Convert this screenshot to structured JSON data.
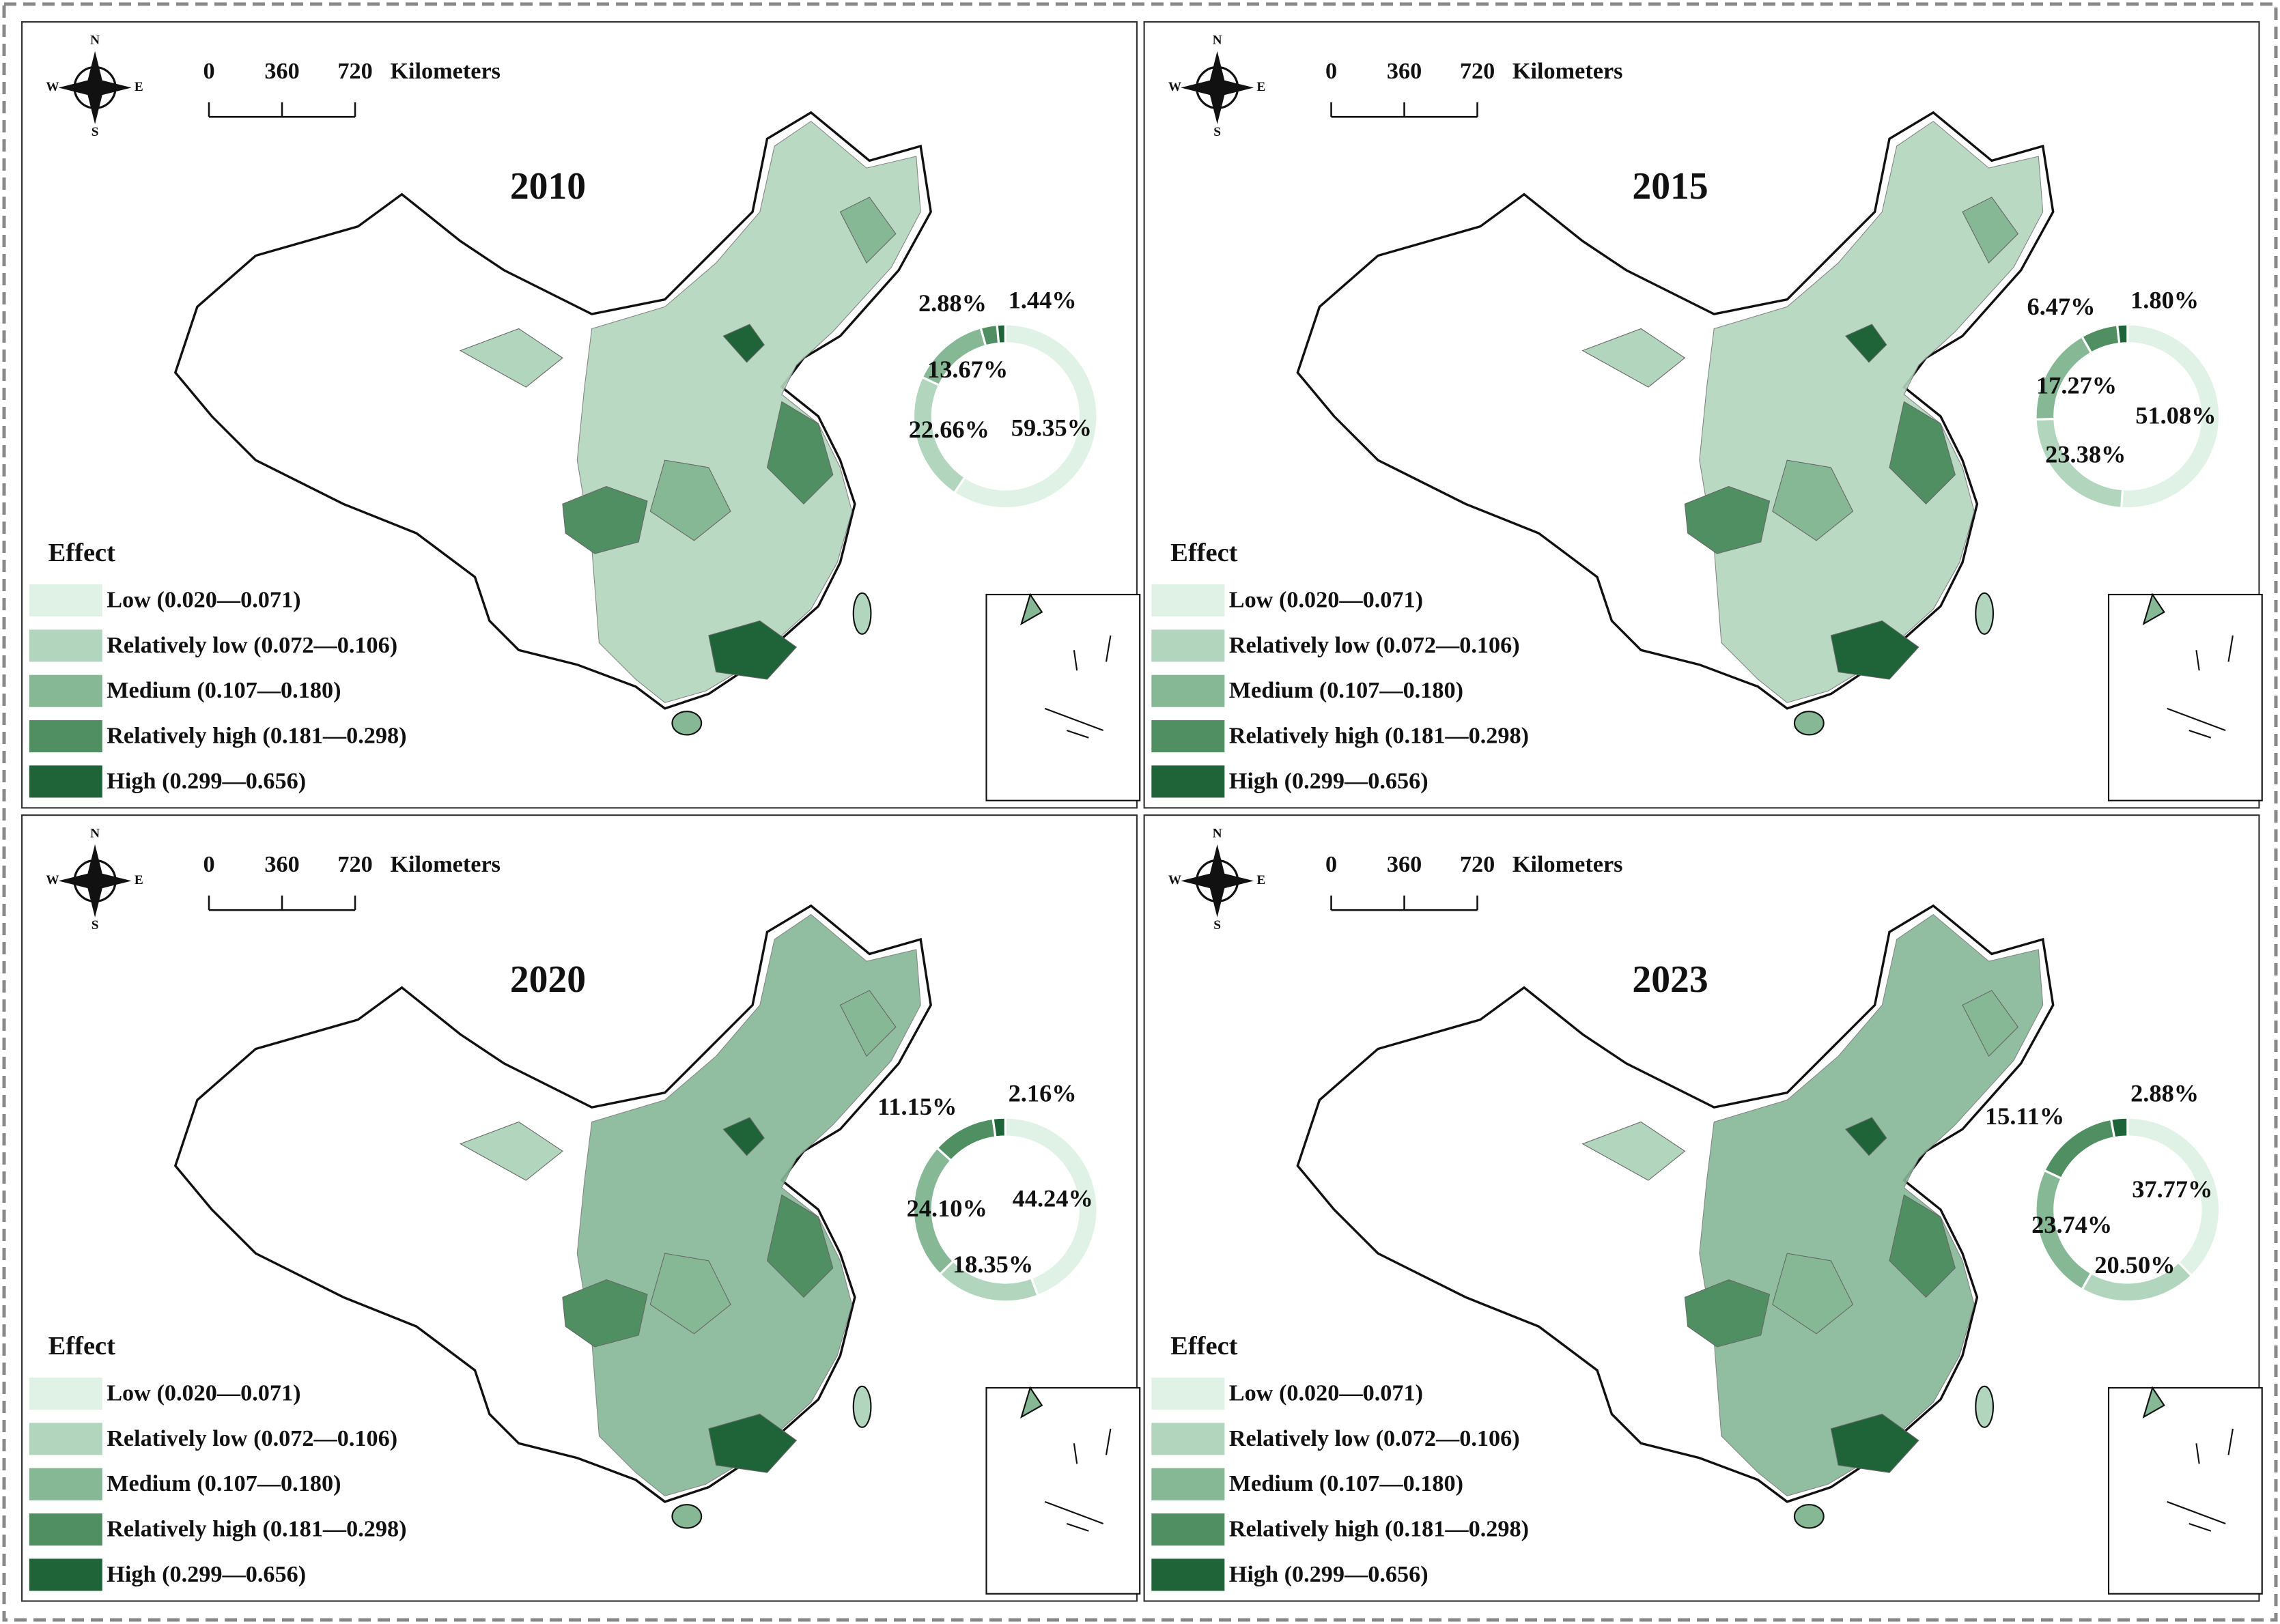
{
  "panels": [
    {
      "year": "2010",
      "compass": {
        "n": "N",
        "s": "S",
        "w": "W",
        "e": "E"
      },
      "scale": {
        "ticks": [
          "0",
          "360",
          "720"
        ],
        "unit": "Kilometers"
      },
      "legend": {
        "title": "Effect",
        "items": [
          {
            "label": "Low (0.020—0.071)",
            "color": "#e0f2e6"
          },
          {
            "label": "Relatively low (0.072—0.106)",
            "color": "#b2d5bd"
          },
          {
            "label": "Medium (0.107—0.180)",
            "color": "#86b896"
          },
          {
            "label": "Relatively high (0.181—0.298)",
            "color": "#4f8f62"
          },
          {
            "label": "High (0.299—0.656)",
            "color": "#1f6339"
          }
        ]
      },
      "donut": {
        "values": [
          59.35,
          22.66,
          13.67,
          2.88,
          1.44
        ],
        "value_labels": [
          "59.35%",
          "22.66%",
          "13.67%",
          "2.88%",
          "1.44%"
        ]
      }
    },
    {
      "year": "2015",
      "compass": {
        "n": "N",
        "s": "S",
        "w": "W",
        "e": "E"
      },
      "scale": {
        "ticks": [
          "0",
          "360",
          "720"
        ],
        "unit": "Kilometers"
      },
      "legend": {
        "title": "Effect",
        "items": [
          {
            "label": "Low (0.020—0.071)",
            "color": "#e0f2e6"
          },
          {
            "label": "Relatively low (0.072—0.106)",
            "color": "#b2d5bd"
          },
          {
            "label": "Medium (0.107—0.180)",
            "color": "#86b896"
          },
          {
            "label": "Relatively high (0.181—0.298)",
            "color": "#4f8f62"
          },
          {
            "label": "High (0.299—0.656)",
            "color": "#1f6339"
          }
        ]
      },
      "donut": {
        "values": [
          51.08,
          23.38,
          17.27,
          6.47,
          1.8
        ],
        "value_labels": [
          "51.08%",
          "23.38%",
          "17.27%",
          "6.47%",
          "1.80%"
        ]
      }
    },
    {
      "year": "2020",
      "compass": {
        "n": "N",
        "s": "S",
        "w": "W",
        "e": "E"
      },
      "scale": {
        "ticks": [
          "0",
          "360",
          "720"
        ],
        "unit": "Kilometers"
      },
      "legend": {
        "title": "Effect",
        "items": [
          {
            "label": "Low (0.020—0.071)",
            "color": "#e0f2e6"
          },
          {
            "label": "Relatively low (0.072—0.106)",
            "color": "#b2d5bd"
          },
          {
            "label": "Medium (0.107—0.180)",
            "color": "#86b896"
          },
          {
            "label": "Relatively high (0.181—0.298)",
            "color": "#4f8f62"
          },
          {
            "label": "High (0.299—0.656)",
            "color": "#1f6339"
          }
        ]
      },
      "donut": {
        "values": [
          44.24,
          18.35,
          24.1,
          11.15,
          2.16
        ],
        "value_labels": [
          "44.24%",
          "18.35%",
          "24.10%",
          "11.15%",
          "2.16%"
        ]
      }
    },
    {
      "year": "2023",
      "compass": {
        "n": "N",
        "s": "S",
        "w": "W",
        "e": "E"
      },
      "scale": {
        "ticks": [
          "0",
          "360",
          "720"
        ],
        "unit": "Kilometers"
      },
      "legend": {
        "title": "Effect",
        "items": [
          {
            "label": "Low (0.020—0.071)",
            "color": "#e0f2e6"
          },
          {
            "label": "Relatively low (0.072—0.106)",
            "color": "#b2d5bd"
          },
          {
            "label": "Medium (0.107—0.180)",
            "color": "#86b896"
          },
          {
            "label": "Relatively high (0.181—0.298)",
            "color": "#4f8f62"
          },
          {
            "label": "High (0.299—0.656)",
            "color": "#1f6339"
          }
        ]
      },
      "donut": {
        "values": [
          37.77,
          20.5,
          23.74,
          15.11,
          2.88
        ],
        "value_labels": [
          "37.77%",
          "20.50%",
          "23.74%",
          "15.11%",
          "2.88%"
        ]
      }
    }
  ]
}
